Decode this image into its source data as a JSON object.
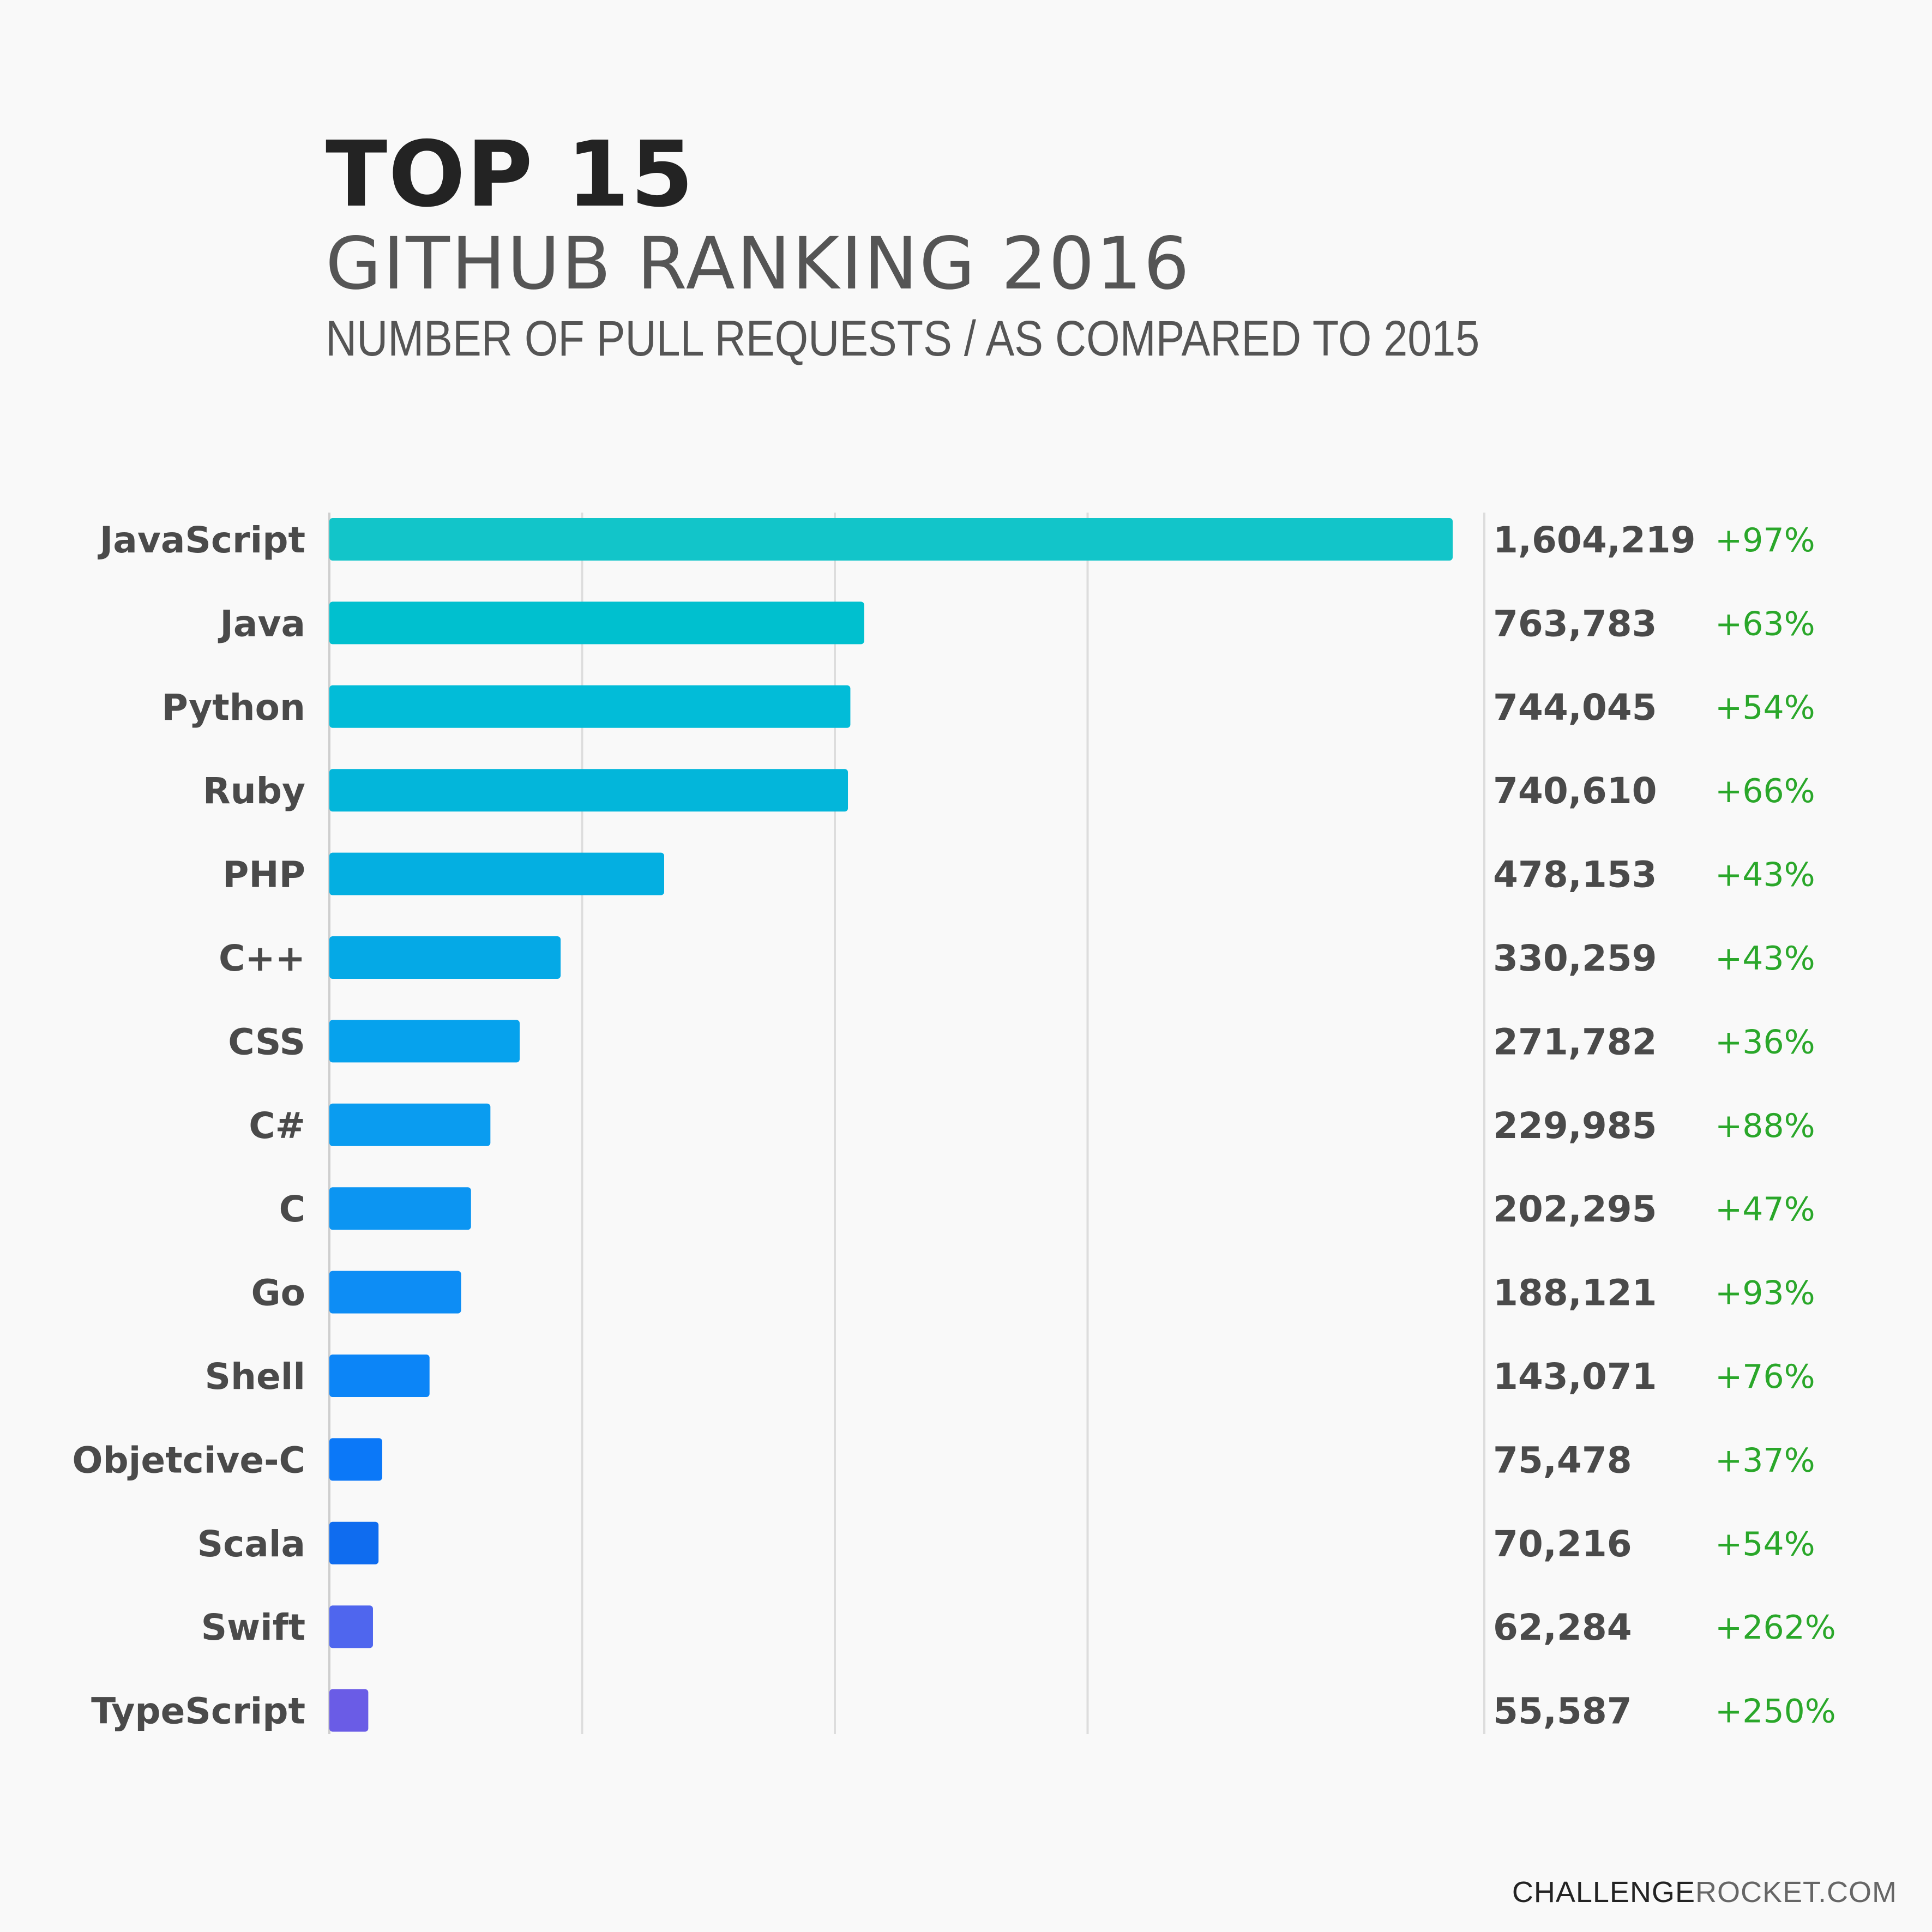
{
  "header": {
    "title": "TOP 15",
    "subtitle": "GITHUB RANKING 2016",
    "description": "NUMBER OF PULL REQUESTS / AS COMPARED TO 2015"
  },
  "footer": {
    "brand_dark": "CHALLENGE",
    "brand_light": "ROCKET.COM"
  },
  "chart_data": {
    "type": "bar",
    "orientation": "horizontal",
    "title": "TOP 15",
    "subtitle": "GITHUB RANKING 2016",
    "xlabel": "",
    "ylabel": "",
    "xlim": [
      0,
      1600000
    ],
    "grid": true,
    "categories": [
      "JavaScript",
      "Java",
      "Python",
      "Ruby",
      "PHP",
      "C++",
      "CSS",
      "C#",
      "C",
      "Go",
      "Shell",
      "Objetcive-C",
      "Scala",
      "Swift",
      "TypeScript"
    ],
    "values": [
      1604219,
      763783,
      744045,
      740610,
      478153,
      330259,
      271782,
      229985,
      202295,
      188121,
      143071,
      75478,
      70216,
      62284,
      55587
    ],
    "value_labels": [
      "1,604,219",
      "763,783",
      "744,045",
      "740,610",
      "478,153",
      "330,259",
      "271,782",
      "229,985",
      "202,295",
      "188,121",
      "143,071",
      "75,478",
      "70,216",
      "62,284",
      "55,587"
    ],
    "change_labels": [
      "+97%",
      "+63%",
      "+54%",
      "+66%",
      "+43%",
      "+43%",
      "+36%",
      "+88%",
      "+47%",
      "+93%",
      "+76%",
      "+37%",
      "+54%",
      "+262%",
      "+250%"
    ],
    "colors": [
      "#12c5c9",
      "#00c0cf",
      "#02bcd8",
      "#03b6da",
      "#04afe1",
      "#05a9e6",
      "#06a2ed",
      "#0a9cf0",
      "#0c95f2",
      "#0d8df5",
      "#0c85f7",
      "#0b78f8",
      "#0f6cef",
      "#4f66ee",
      "#6a5ce6"
    ],
    "text_color": "#4a4a4a",
    "change_color": "#2aa72a"
  }
}
